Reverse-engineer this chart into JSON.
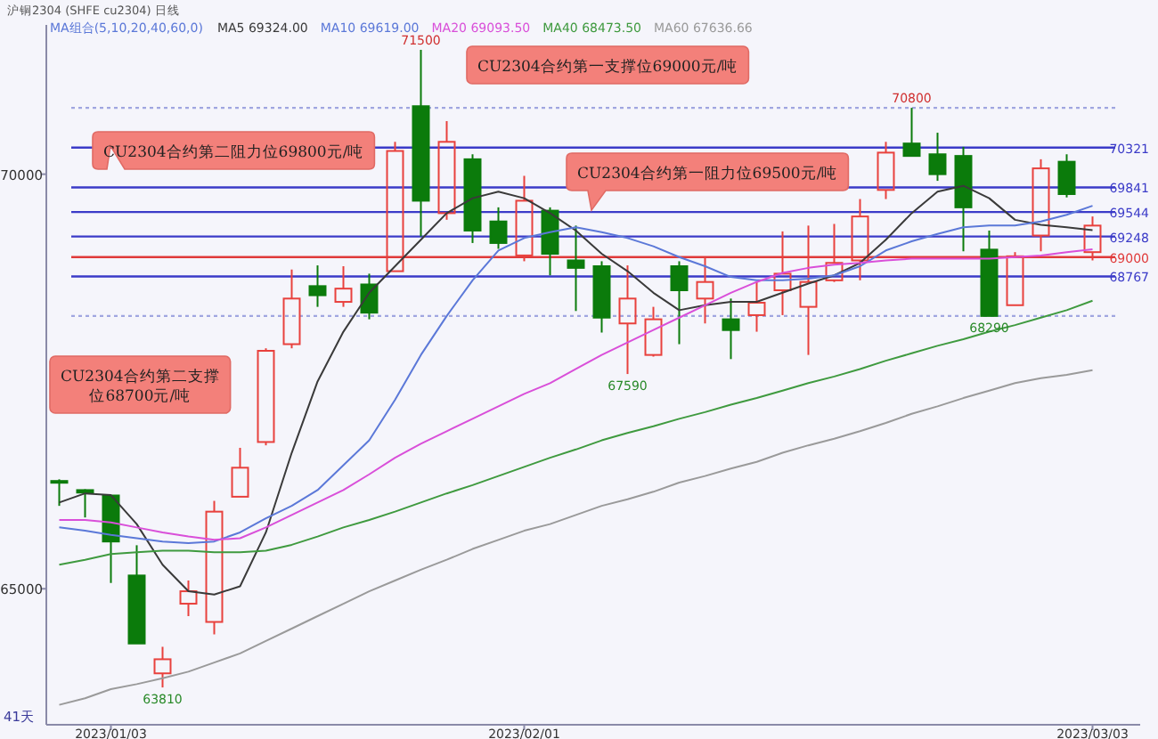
{
  "chart_data": {
    "type": "candlestick",
    "title": "沪铜2304 (SHFE cu2304) 日线",
    "legend_title": "MA组合(5,10,20,40,60,0)",
    "legend": "top",
    "categories": [
      null,
      null,
      "2023/01/03",
      null,
      null,
      null,
      null,
      null,
      null,
      null,
      null,
      null,
      null,
      null,
      null,
      null,
      null,
      null,
      "2023/02/01",
      null,
      null,
      null,
      null,
      null,
      null,
      null,
      null,
      null,
      null,
      null,
      null,
      null,
      null,
      null,
      null,
      null,
      null,
      null,
      null,
      null,
      "2023/03/03"
    ],
    "ylim": [
      63360,
      71800
    ],
    "yticks": [
      65000,
      70000
    ],
    "ohlc": [
      [
        66300,
        66320,
        66000,
        66290
      ],
      [
        66190,
        66200,
        65860,
        66160
      ],
      [
        66125,
        66125,
        65070,
        65570
      ],
      [
        65160,
        65525,
        64340,
        64340
      ],
      [
        63980,
        64300,
        63810,
        64150
      ],
      [
        64820,
        65100,
        64670,
        64970
      ],
      [
        64600,
        66060,
        64450,
        65930
      ],
      [
        66110,
        66700,
        66110,
        66460
      ],
      [
        66770,
        67900,
        66730,
        67870
      ],
      [
        67950,
        68850,
        67900,
        68500
      ],
      [
        68650,
        68900,
        68400,
        68540
      ],
      [
        68460,
        68890,
        68400,
        68620
      ],
      [
        68670,
        68800,
        68250,
        68330
      ],
      [
        68830,
        70390,
        68830,
        70280
      ],
      [
        70820,
        71500,
        69250,
        69680
      ],
      [
        69530,
        70640,
        69450,
        70390
      ],
      [
        70180,
        70240,
        69170,
        69320
      ],
      [
        69430,
        69600,
        69100,
        69170
      ],
      [
        69020,
        69980,
        68950,
        69680
      ],
      [
        69560,
        69600,
        68780,
        69040
      ],
      [
        68960,
        69380,
        68350,
        68870
      ],
      [
        68890,
        68950,
        68090,
        68270
      ],
      [
        68200,
        68900,
        67590,
        68500
      ],
      [
        67820,
        68400,
        67800,
        68250
      ],
      [
        68890,
        68950,
        67950,
        68600
      ],
      [
        68500,
        69000,
        68200,
        68700
      ],
      [
        68250,
        68500,
        67770,
        68120
      ],
      [
        68300,
        68700,
        68100,
        68450
      ],
      [
        68600,
        69310,
        68300,
        68800
      ],
      [
        68400,
        69380,
        67820,
        68700
      ],
      [
        68720,
        69400,
        68700,
        68930
      ],
      [
        68960,
        69700,
        68720,
        69490
      ],
      [
        69810,
        70390,
        69700,
        70260
      ],
      [
        70370,
        70800,
        70220,
        70220
      ],
      [
        70240,
        70500,
        69920,
        70000
      ],
      [
        70220,
        70330,
        69070,
        69600
      ],
      [
        69090,
        69320,
        68290,
        68290
      ],
      [
        68420,
        69060,
        68420,
        69010
      ],
      [
        69260,
        70180,
        69070,
        70070
      ],
      [
        70150,
        70240,
        69720,
        69760
      ],
      [
        69060,
        69490,
        68960,
        69380
      ]
    ],
    "colors": [
      "#0b7b0b",
      "#0b7b0b",
      "#0b7b0b",
      "#0b7b0b",
      "#e8413d",
      "#e8413d",
      "#e8413d",
      "#e8413d",
      "#e8413d",
      "#e8413d",
      "#0b7b0b",
      "#e8413d",
      "#0b7b0b",
      "#e8413d",
      "#0b7b0b",
      "#e8413d",
      "#0b7b0b",
      "#0b7b0b",
      "#e8413d",
      "#0b7b0b",
      "#0b7b0b",
      "#0b7b0b",
      "#e8413d",
      "#e8413d",
      "#0b7b0b",
      "#e8413d",
      "#0b7b0b",
      "#e8413d",
      "#e8413d",
      "#e8413d",
      "#e8413d",
      "#e8413d",
      "#e8413d",
      "#0b7b0b",
      "#0b7b0b",
      "#0b7b0b",
      "#0b7b0b",
      "#e8413d",
      "#e8413d",
      "#0b7b0b",
      "#e8413d"
    ],
    "series": [
      {
        "type": "line",
        "name": "MA5 69324.00",
        "color": "#3a3a3a",
        "values": [
          66040,
          66150,
          66130,
          65780,
          65290,
          64970,
          64930,
          65030,
          65680,
          66640,
          67500,
          68100,
          68570,
          68890,
          69210,
          69530,
          69710,
          69790,
          69710,
          69530,
          69320,
          69040,
          68830,
          68570,
          68360,
          68420,
          68460,
          68460,
          68570,
          68680,
          68780,
          68930,
          69210,
          69530,
          69790,
          69860,
          69710,
          69450,
          69390,
          69360,
          69324
        ]
      },
      {
        "type": "line",
        "name": "MA10 69619.00",
        "color": "#5b78d8",
        "values": [
          65740,
          65700,
          65650,
          65610,
          65570,
          65550,
          65570,
          65680,
          65850,
          66000,
          66190,
          66490,
          66790,
          67280,
          67820,
          68290,
          68720,
          69080,
          69230,
          69300,
          69360,
          69300,
          69230,
          69130,
          69000,
          68890,
          68760,
          68720,
          68720,
          68740,
          68780,
          68890,
          69080,
          69190,
          69280,
          69360,
          69380,
          69380,
          69430,
          69510,
          69619
        ]
      },
      {
        "type": "line",
        "name": "MA20 69093.50",
        "color": "#d94fd9",
        "values": [
          65830,
          65830,
          65800,
          65740,
          65680,
          65630,
          65590,
          65610,
          65740,
          65890,
          66040,
          66190,
          66380,
          66580,
          66750,
          66900,
          67050,
          67200,
          67350,
          67480,
          67650,
          67820,
          67970,
          68120,
          68270,
          68420,
          68570,
          68700,
          68810,
          68870,
          68910,
          68930,
          68960,
          68980,
          68980,
          68980,
          68980,
          69000,
          69020,
          69060,
          69093.5
        ]
      },
      {
        "type": "line",
        "name": "MA40 68473.50",
        "color": "#3f9a3f",
        "values": [
          65290,
          65350,
          65420,
          65440,
          65460,
          65460,
          65440,
          65440,
          65460,
          65530,
          65630,
          65740,
          65830,
          65930,
          66040,
          66150,
          66250,
          66360,
          66470,
          66580,
          66680,
          66790,
          66880,
          66960,
          67050,
          67130,
          67220,
          67300,
          67390,
          67480,
          67560,
          67650,
          67750,
          67840,
          67930,
          68010,
          68100,
          68180,
          68270,
          68360,
          68473.5
        ]
      },
      {
        "type": "line",
        "name": "MA60 67636.66",
        "color": "#9a9a9a",
        "values": [
          63600,
          63680,
          63790,
          63850,
          63920,
          64000,
          64110,
          64220,
          64370,
          64520,
          64670,
          64820,
          64970,
          65100,
          65230,
          65350,
          65480,
          65590,
          65700,
          65780,
          65890,
          66000,
          66080,
          66170,
          66280,
          66360,
          66450,
          66530,
          66640,
          66730,
          66810,
          66900,
          67000,
          67110,
          67200,
          67300,
          67390,
          67480,
          67540,
          67580,
          67636.66
        ]
      }
    ],
    "ref_lines": [
      {
        "axis": "y",
        "value": 70321,
        "label": "70321",
        "color": "#3b3bc8"
      },
      {
        "axis": "y",
        "value": 69841,
        "label": "69841",
        "color": "#3b3bc8"
      },
      {
        "axis": "y",
        "value": 69544,
        "label": "69544",
        "color": "#3b3bc8"
      },
      {
        "axis": "y",
        "value": 69248,
        "label": "69248",
        "color": "#3b3bc8"
      },
      {
        "axis": "y",
        "value": 69000,
        "label": "69000",
        "color": "#e03a3a"
      },
      {
        "axis": "y",
        "value": 68767,
        "label": "68767",
        "color": "#3b3bc8"
      },
      {
        "axis": "y",
        "value": 70800,
        "label": null,
        "color": "#a0a6e0",
        "line_style": "dotted"
      },
      {
        "axis": "y",
        "value": 68290,
        "label": null,
        "color": "#a0a6e0",
        "line_style": "dotted"
      }
    ],
    "annotations": [
      {
        "text": "71500",
        "y": 71500
      },
      {
        "text": "63810",
        "y": 63810
      },
      {
        "text": "67590",
        "y": 67590
      },
      {
        "text": "70800",
        "y": 70800
      },
      {
        "text": "68290",
        "y": 68290
      },
      {
        "text": "CU2304合约第二阻力位69800元/吨",
        "y": 70321
      },
      "CU2304合约第二支撑位68700元/吨",
      {
        "text": "CU2304合约第一阻力位69500元/吨",
        "y": 69544
      },
      "CU2304合约第一支撑位69000元/吨",
      "41天"
    ]
  }
}
